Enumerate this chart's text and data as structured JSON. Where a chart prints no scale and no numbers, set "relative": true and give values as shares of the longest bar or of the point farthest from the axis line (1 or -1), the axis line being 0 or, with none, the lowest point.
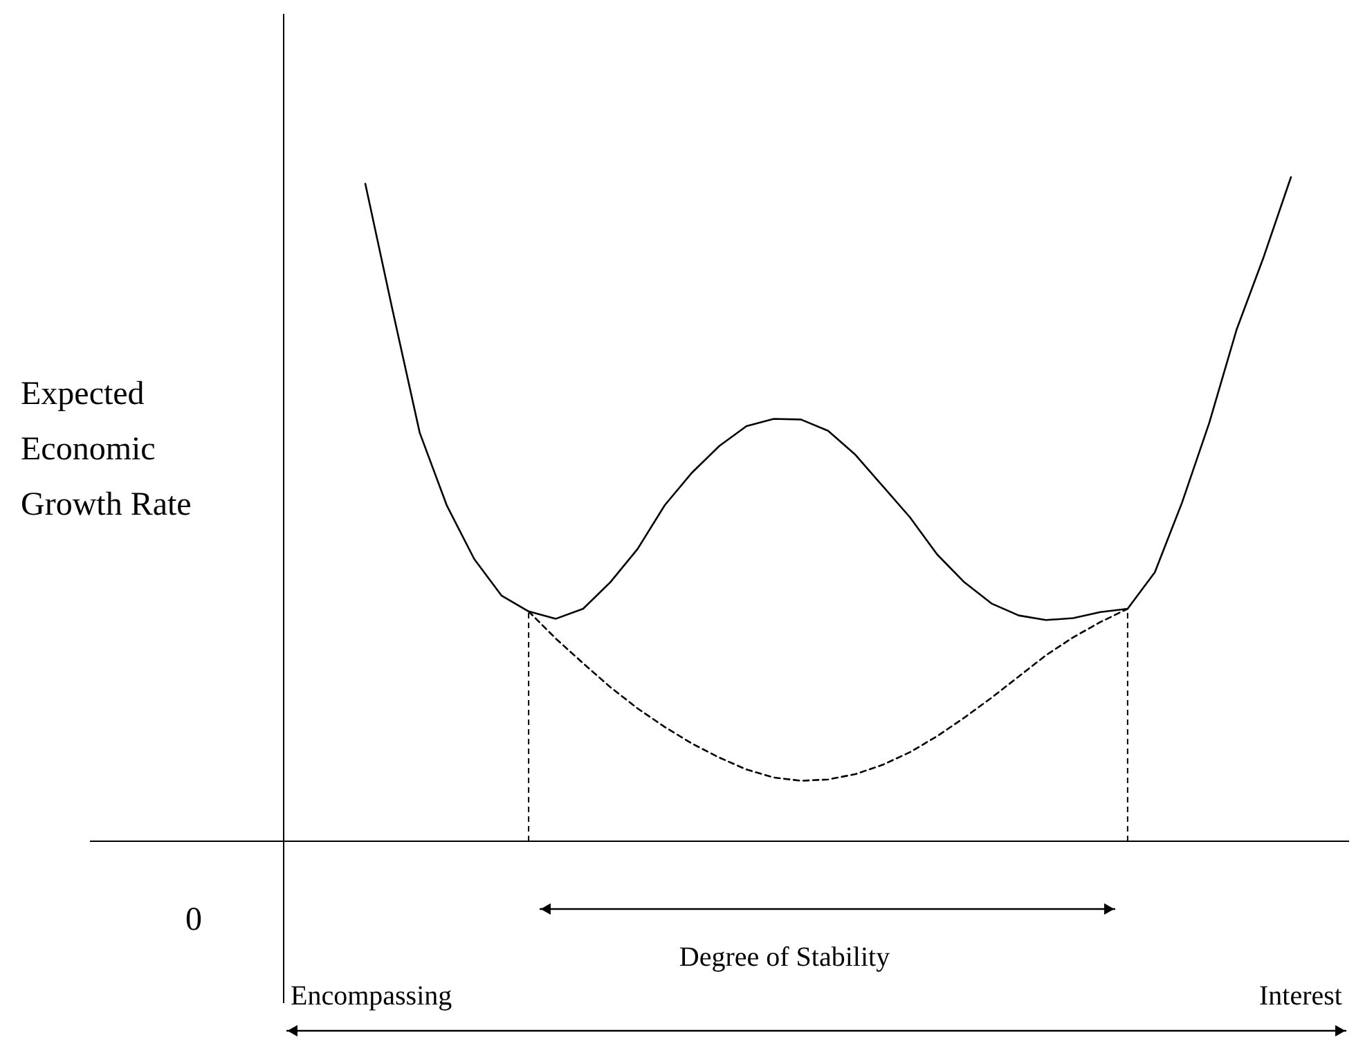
{
  "chart_data": {
    "type": "line",
    "relative": true,
    "ylabel": "Expected\nEconomic\nGrowth Rate",
    "annotations": [
      "0",
      "Degree of Stability",
      "Encompassing",
      "Interest"
    ],
    "categories": [
      null,
      null,
      null,
      null,
      null,
      null,
      null,
      null,
      null,
      null,
      null,
      null,
      null,
      null,
      null,
      null,
      null,
      null,
      null,
      null,
      null,
      null,
      null,
      null,
      null,
      null,
      null,
      null,
      null,
      null,
      null,
      null,
      null,
      null,
      null
    ],
    "series": [
      {
        "color": "#000000",
        "line_style": "solid",
        "values": [
          0.99,
          0.8,
          0.615,
          0.505,
          0.425,
          0.37,
          0.346,
          0.335,
          0.35,
          0.39,
          0.44,
          0.506,
          0.555,
          0.595,
          0.625,
          0.636,
          0.635,
          0.618,
          0.582,
          0.535,
          0.488,
          0.432,
          0.39,
          0.358,
          0.34,
          0.333,
          0.336,
          0.345,
          0.35,
          0.405,
          0.51,
          0.63,
          0.77,
          0.88,
          1.0
        ]
      },
      {
        "color": "#000000",
        "line_style": "dashed",
        "values": [
          null,
          null,
          null,
          null,
          null,
          null,
          0.346,
          0.305,
          0.268,
          0.232,
          0.2,
          0.172,
          0.147,
          0.126,
          0.108,
          0.096,
          0.091,
          0.093,
          0.101,
          0.115,
          0.134,
          0.158,
          0.186,
          0.216,
          0.248,
          0.28,
          0.307,
          0.33,
          0.35,
          null,
          null,
          null,
          null,
          null,
          null
        ]
      }
    ]
  }
}
